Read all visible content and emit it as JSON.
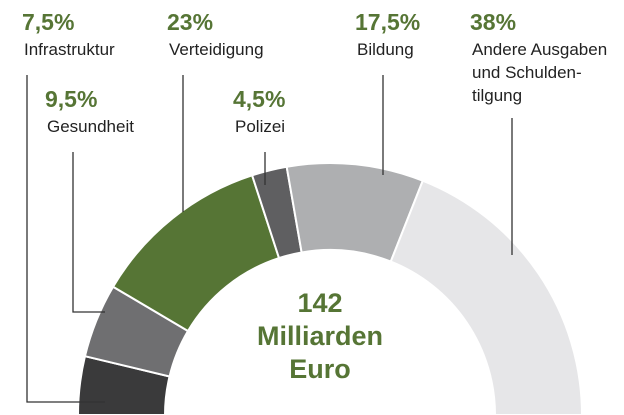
{
  "chart_data": {
    "type": "semidonut",
    "categories": [
      [
        "Infrastruktur"
      ],
      [
        "Gesundheit"
      ],
      [
        "Verteidigung"
      ],
      [
        "Polizei"
      ],
      [
        "Bildung"
      ],
      [
        "Andere Ausgaben",
        "und Schulden-",
        "tilgung"
      ]
    ],
    "values": [
      7.5,
      9.5,
      23,
      4.5,
      17.5,
      38
    ],
    "value_labels": [
      "7,5%",
      "9,5%",
      "23%",
      "4,5%",
      "17,5%",
      "38%"
    ],
    "colors": [
      "#3a3a3b",
      "#6f6f71",
      "#567535",
      "#5f5f61",
      "#aeafb1",
      "#e6e6e8"
    ],
    "center_label": [
      "142",
      "Milliarden",
      "Euro"
    ]
  }
}
